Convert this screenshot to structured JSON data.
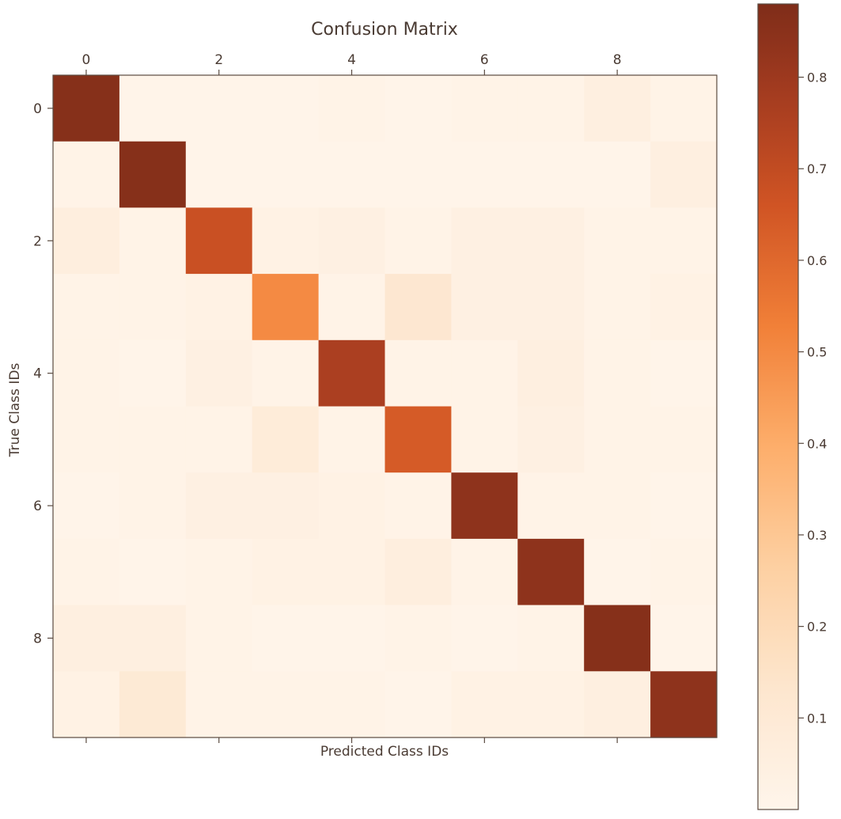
{
  "chart_data": {
    "type": "heatmap",
    "title": "Confusion Matrix",
    "xlabel": "Predicted Class IDs",
    "ylabel": "True Class IDs",
    "x_ticks": [
      0,
      2,
      4,
      6,
      8
    ],
    "y_ticks": [
      0,
      2,
      4,
      6,
      8
    ],
    "x_tick_position": "top",
    "colormap": "Oranges",
    "colorbar": {
      "ticks": [
        "0.1",
        "0.2",
        "0.3",
        "0.4",
        "0.5",
        "0.6",
        "0.7",
        "0.8"
      ],
      "range": [
        0.0,
        0.88
      ]
    },
    "categories": [
      0,
      1,
      2,
      3,
      4,
      5,
      6,
      7,
      8,
      9
    ],
    "matrix": [
      [
        0.86,
        0.01,
        0.01,
        0.01,
        0.02,
        0.01,
        0.02,
        0.02,
        0.05,
        0.02
      ],
      [
        0.02,
        0.86,
        0.01,
        0.01,
        0.01,
        0.01,
        0.01,
        0.01,
        0.01,
        0.05
      ],
      [
        0.06,
        0.02,
        0.68,
        0.03,
        0.04,
        0.02,
        0.04,
        0.04,
        0.02,
        0.02
      ],
      [
        0.02,
        0.02,
        0.03,
        0.5,
        0.02,
        0.12,
        0.04,
        0.04,
        0.02,
        0.03
      ],
      [
        0.02,
        0.01,
        0.04,
        0.02,
        0.76,
        0.02,
        0.02,
        0.05,
        0.02,
        0.01
      ],
      [
        0.02,
        0.02,
        0.02,
        0.08,
        0.02,
        0.64,
        0.02,
        0.04,
        0.02,
        0.02
      ],
      [
        0.01,
        0.02,
        0.04,
        0.04,
        0.03,
        0.02,
        0.84,
        0.02,
        0.02,
        0.01
      ],
      [
        0.02,
        0.01,
        0.02,
        0.03,
        0.03,
        0.06,
        0.02,
        0.84,
        0.01,
        0.02
      ],
      [
        0.05,
        0.05,
        0.02,
        0.01,
        0.01,
        0.02,
        0.01,
        0.02,
        0.86,
        0.01
      ],
      [
        0.03,
        0.1,
        0.02,
        0.02,
        0.02,
        0.01,
        0.03,
        0.03,
        0.05,
        0.84
      ]
    ]
  }
}
